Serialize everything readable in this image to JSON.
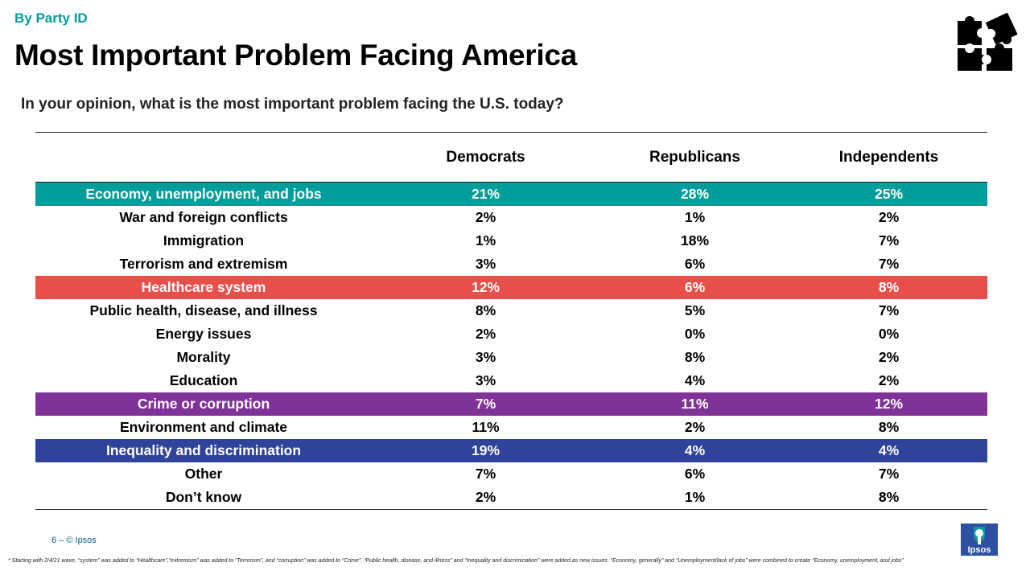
{
  "header": {
    "section": "By Party ID",
    "title": "Most Important Problem Facing America",
    "question": "In your opinion, what is the most important problem facing the U.S. today?"
  },
  "chart_data": {
    "type": "table",
    "columns": [
      "",
      "Democrats",
      "Republicans",
      "Independents"
    ],
    "rows": [
      {
        "label": "Economy, unemployment, and jobs",
        "values": [
          "21%",
          "28%",
          "25%"
        ],
        "highlight": "#009d9a"
      },
      {
        "label": "War and foreign conflicts",
        "values": [
          "2%",
          "1%",
          "2%"
        ]
      },
      {
        "label": "Immigration",
        "values": [
          "1%",
          "18%",
          "7%"
        ]
      },
      {
        "label": "Terrorism and extremism",
        "values": [
          "3%",
          "6%",
          "7%"
        ]
      },
      {
        "label": "Healthcare system",
        "values": [
          "12%",
          "6%",
          "8%"
        ],
        "highlight": "#e84f4a"
      },
      {
        "label": "Public health, disease, and illness",
        "values": [
          "8%",
          "5%",
          "7%"
        ]
      },
      {
        "label": "Energy issues",
        "values": [
          "2%",
          "0%",
          "0%"
        ]
      },
      {
        "label": "Morality",
        "values": [
          "3%",
          "8%",
          "2%"
        ]
      },
      {
        "label": "Education",
        "values": [
          "3%",
          "4%",
          "2%"
        ]
      },
      {
        "label": "Crime or corruption",
        "values": [
          "7%",
          "11%",
          "12%"
        ],
        "highlight": "#7f3399"
      },
      {
        "label": "Environment and climate",
        "values": [
          "11%",
          "2%",
          "8%"
        ]
      },
      {
        "label": "Inequality and discrimination",
        "values": [
          "19%",
          "4%",
          "4%"
        ],
        "highlight": "#2e4399"
      },
      {
        "label": "Other",
        "values": [
          "7%",
          "6%",
          "7%"
        ]
      },
      {
        "label": "Don’t know",
        "values": [
          "2%",
          "1%",
          "8%"
        ]
      }
    ]
  },
  "footer": {
    "page": "6 –  © Ipsos",
    "footnote": "* Starting with 2/4/21 wave, “system” was added to “Healthcare”,“extremism” was added to “Terrorism”, and “corruption” was added to “Crime”. “Public health, disease, and illness” and “Inequality and discrimination” were added as new issues. “Economy, generally” and “Unemployment/lack of jobs” were combined to create “Economy, unemployment, and jobs”",
    "logo_text": "Ipsos"
  },
  "colors": {
    "teal": "#009d9a",
    "red": "#e84f4a",
    "purple": "#7f3399",
    "navy": "#2e4399",
    "logo_blue": "#2d50a3"
  },
  "icons": [
    "puzzle-icon",
    "ipsos-logo"
  ]
}
